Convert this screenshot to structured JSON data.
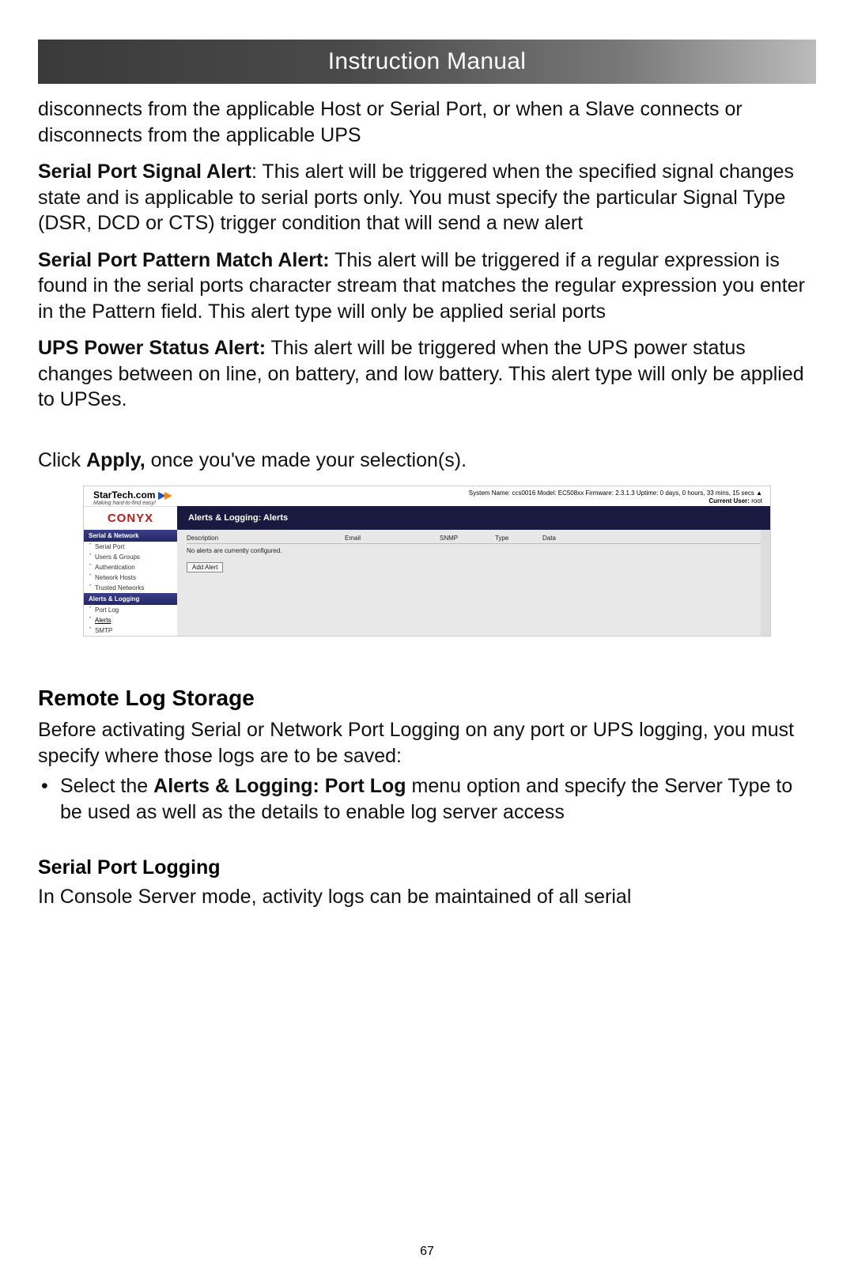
{
  "header": {
    "title": "Instruction Manual"
  },
  "paras": {
    "p1": "disconnects from the applicable Host or Serial Port, or when a Slave connects or disconnects from the applicable UPS",
    "p2_b": "Serial Port Signal Alert",
    "p2": ": This alert will be triggered when the specified signal changes state and is applicable to serial ports only. You must specify the particular Signal Type (DSR, DCD or CTS) trigger condition that will send a new alert",
    "p3_b": "Serial Port Pattern Match Alert:",
    "p3": " This alert will be triggered if a regular expression is found in the serial ports character stream that matches the regular expression you enter in the Pattern field. This alert type will only be applied serial ports",
    "p4_b": "UPS Power Status Alert:",
    "p4": " This alert will be triggered when the UPS power status changes between on line, on battery, and low battery. This alert type will only be applied to UPSes.",
    "p5_a": "Click ",
    "p5_b": "Apply,",
    "p5_c": " once you've made your selection(s)."
  },
  "screenshot": {
    "logo_text": "StarTech.com",
    "logo_sub": "Making hard-to-find easy!",
    "status_line": "System Name: ccs0016   Model: EC508xx   Firmware: 2.3.1.3   Uptime: 0 days, 0 hours, 33 mins, 15 secs",
    "current_user_label": "Current User:",
    "current_user": "root",
    "conyx": "CONYX",
    "panel_title": "Alerts & Logging: Alerts",
    "sidebar": {
      "sec1": "Serial & Network",
      "items1": [
        "Serial Port",
        "Users & Groups",
        "Authentication",
        "Network Hosts",
        "Trusted Networks"
      ],
      "sec2": "Alerts & Logging",
      "items2": [
        "Port Log",
        "Alerts",
        "SMTP"
      ]
    },
    "columns": [
      "Description",
      "Email",
      "SNMP",
      "Type",
      "Data"
    ],
    "no_alerts": "No alerts are currently configured.",
    "add_btn": "Add Alert"
  },
  "section_heading": "Remote Log Storage",
  "section_p": "Before activating Serial or Network Port Logging on any port or UPS logging, you must specify where those logs are to be saved:",
  "bullet_a": "Select the ",
  "bullet_b": "Alerts & Logging: Port Log",
  "bullet_c": " menu option and specify the Server Type to be used as well as the details to enable log server access",
  "sub_heading": "Serial Port Logging",
  "sub_p": "In Console Server mode, activity logs can be maintained of all serial",
  "page_number": "67"
}
